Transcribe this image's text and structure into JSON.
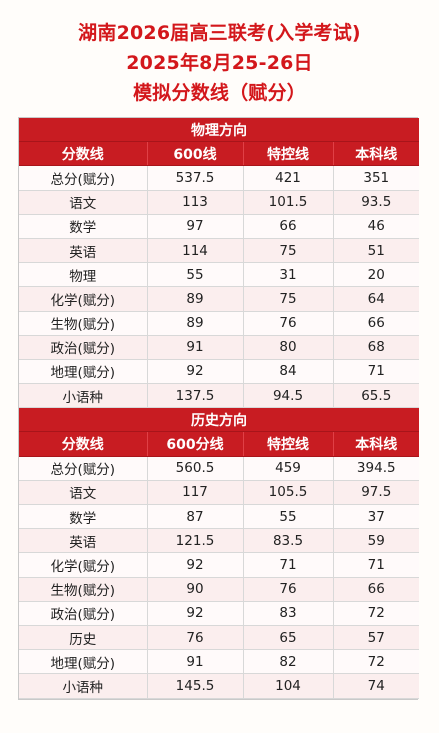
{
  "title": {
    "line1": "湖南2026届高三联考(入学考试)",
    "line2": "2025年8月25-26日",
    "line3": "模拟分数线（赋分）"
  },
  "physics": {
    "section_label": "物理方向",
    "headers": [
      "分数线",
      "600线",
      "特控线",
      "本科线"
    ],
    "rows": [
      {
        "subject": "总分(赋分)",
        "v600": "537.5",
        "vte": "421",
        "vben": "351"
      },
      {
        "subject": "语文",
        "v600": "113",
        "vte": "101.5",
        "vben": "93.5"
      },
      {
        "subject": "数学",
        "v600": "97",
        "vte": "66",
        "vben": "46"
      },
      {
        "subject": "英语",
        "v600": "114",
        "vte": "75",
        "vben": "51"
      },
      {
        "subject": "物理",
        "v600": "55",
        "vte": "31",
        "vben": "20"
      },
      {
        "subject": "化学(赋分)",
        "v600": "89",
        "vte": "75",
        "vben": "64"
      },
      {
        "subject": "生物(赋分)",
        "v600": "89",
        "vte": "76",
        "vben": "66"
      },
      {
        "subject": "政治(赋分)",
        "v600": "91",
        "vte": "80",
        "vben": "68"
      },
      {
        "subject": "地理(赋分)",
        "v600": "92",
        "vte": "84",
        "vben": "71"
      },
      {
        "subject": "小语种",
        "v600": "137.5",
        "vte": "94.5",
        "vben": "65.5"
      }
    ]
  },
  "history": {
    "section_label": "历史方向",
    "headers": [
      "分数线",
      "600分线",
      "特控线",
      "本科线"
    ],
    "rows": [
      {
        "subject": "总分(赋分)",
        "v600": "560.5",
        "vte": "459",
        "vben": "394.5"
      },
      {
        "subject": "语文",
        "v600": "117",
        "vte": "105.5",
        "vben": "97.5"
      },
      {
        "subject": "数学",
        "v600": "87",
        "vte": "55",
        "vben": "37"
      },
      {
        "subject": "英语",
        "v600": "121.5",
        "vte": "83.5",
        "vben": "59"
      },
      {
        "subject": "化学(赋分)",
        "v600": "92",
        "vte": "71",
        "vben": "71"
      },
      {
        "subject": "生物(赋分)",
        "v600": "90",
        "vte": "76",
        "vben": "66"
      },
      {
        "subject": "政治(赋分)",
        "v600": "92",
        "vte": "83",
        "vben": "72"
      },
      {
        "subject": "历史",
        "v600": "76",
        "vte": "65",
        "vben": "57"
      },
      {
        "subject": "地理(赋分)",
        "v600": "91",
        "vte": "82",
        "vben": "72"
      },
      {
        "subject": "小语种",
        "v600": "145.5",
        "vte": "104",
        "vben": "74"
      }
    ]
  },
  "colors": {
    "title": "#d3171b",
    "header_bg": "#c81c22",
    "row_alt": "#fbeeee"
  }
}
